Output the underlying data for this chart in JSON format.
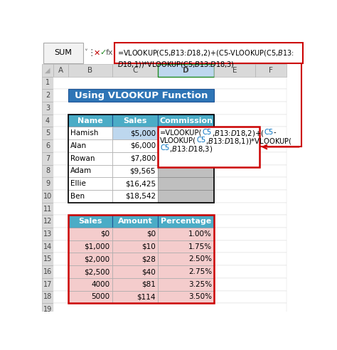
{
  "title": "Using VLOOKUP Function",
  "title_bg": "#2E75B6",
  "title_color": "#FFFFFF",
  "formula_bar_formula": "=VLOOKUP(C5,$B$13:$D$18,2)+(C5-VLOOKUP(C5,$B$13:\n$D$18,1))*VLOOKUP(C5,$B$13:$D$18,3)",
  "col_headers": [
    "A",
    "B",
    "C",
    "D",
    "E",
    "F"
  ],
  "row_numbers": [
    "1",
    "2",
    "3",
    "4",
    "5",
    "6",
    "7",
    "8",
    "9",
    "10",
    "11",
    "12",
    "13",
    "14",
    "15",
    "16",
    "17",
    "18",
    "19"
  ],
  "table1_headers": [
    "Name",
    "Sales",
    "Commission"
  ],
  "table1_header_bg": "#4BACC6",
  "table1_header_color": "#FFFFFF",
  "table1_data": [
    [
      "Hamish",
      "$5,000",
      ""
    ],
    [
      "Alan",
      "$6,000",
      ""
    ],
    [
      "Rowan",
      "$7,800",
      ""
    ],
    [
      "Adam",
      "$9,565",
      ""
    ],
    [
      "Ellie",
      "$16,425",
      ""
    ],
    [
      "Ben",
      "$18,542",
      ""
    ]
  ],
  "table2_headers": [
    "Sales",
    "Amount",
    "Percentage"
  ],
  "table2_header_bg": "#4BACC6",
  "table2_header_color": "#FFFFFF",
  "table2_data": [
    [
      "$0",
      "$0",
      "1.00%"
    ],
    [
      "$1,000",
      "$10",
      "1.75%"
    ],
    [
      "$2,000",
      "$28",
      "2.50%"
    ],
    [
      "$2,500",
      "$40",
      "2.75%"
    ],
    [
      "4000",
      "$81",
      "3.25%"
    ],
    [
      "5000",
      "$114",
      "3.50%"
    ]
  ],
  "table2_row_bg": "#F4CCCC",
  "selected_cell_bg": "#BDD7EE",
  "commission_col_bg": "#BFBFBF",
  "col_header_bg": "#D9D9D9",
  "col_d_bg": "#D9D9D9",
  "row_header_bg": "#D9D9D9",
  "bg_color": "#FFFFFF",
  "tooltip_black": "#000000",
  "tooltip_blue": "#0070C0",
  "tooltip_red_parts": "#C00000"
}
